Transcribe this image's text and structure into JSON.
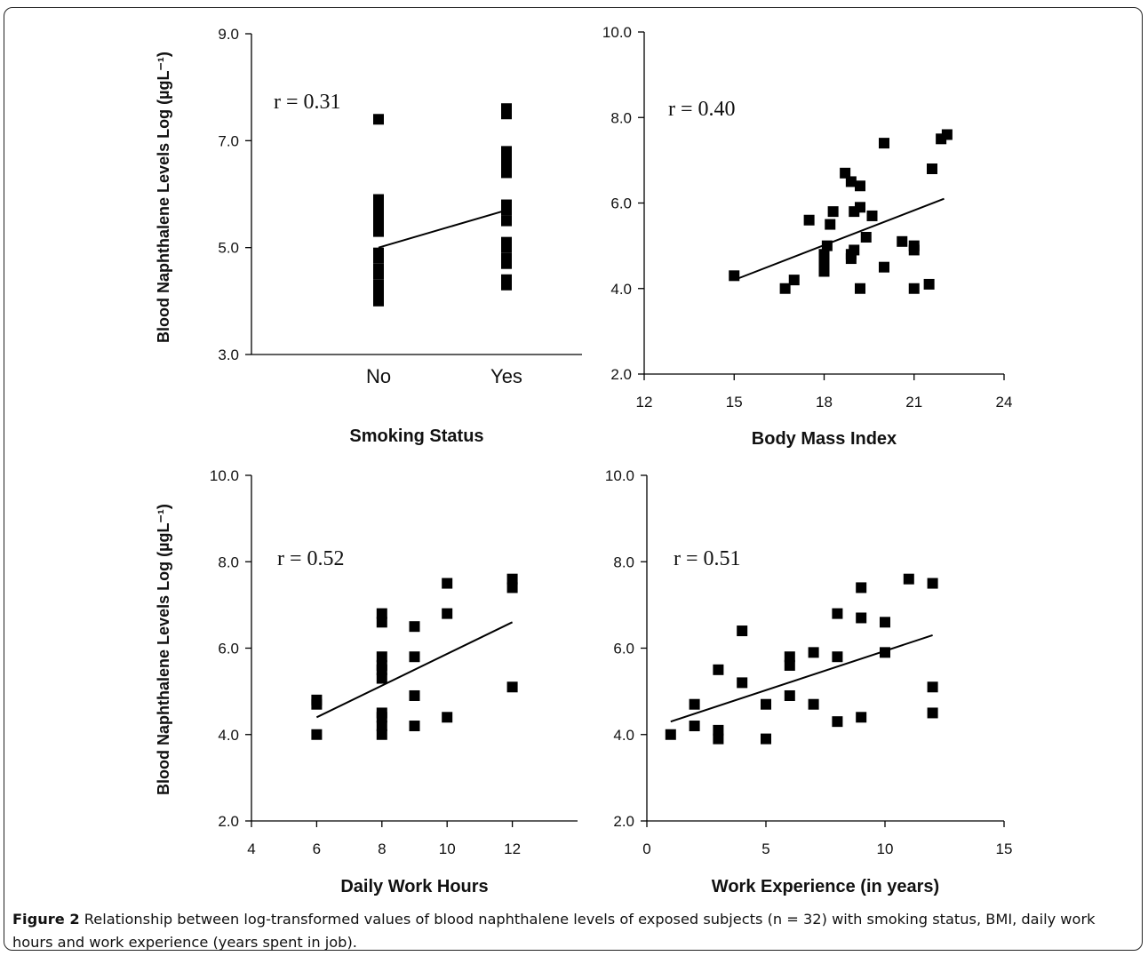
{
  "caption": {
    "label": "Figure 2",
    "text": "Relationship between log-transformed values of blood naphthalene levels of exposed subjects (n = 32) with smoking status, BMI, daily work hours and work experience (years spent in job)."
  },
  "colors": {
    "marker": "#000000",
    "axis": "#000000",
    "text": "#111111"
  },
  "chart_data": [
    {
      "type": "scatter",
      "xlabel": "Smoking Status",
      "ylabel": "Blood Naphthalene Levels Log (µgL⁻¹)",
      "annotation": "r = 0.31",
      "x_categories": [
        "No",
        "Yes"
      ],
      "ylim": [
        3.0,
        9.0
      ],
      "yticks": [
        "3.0",
        "5.0",
        "7.0",
        "9.0"
      ],
      "points": [
        [
          "No",
          4.0
        ],
        [
          "No",
          4.1
        ],
        [
          "No",
          4.2
        ],
        [
          "No",
          4.3
        ],
        [
          "No",
          4.5
        ],
        [
          "No",
          4.6
        ],
        [
          "No",
          4.8
        ],
        [
          "No",
          4.9
        ],
        [
          "No",
          5.3
        ],
        [
          "No",
          5.4
        ],
        [
          "No",
          5.5
        ],
        [
          "No",
          5.6
        ],
        [
          "No",
          5.7
        ],
        [
          "No",
          5.8
        ],
        [
          "No",
          5.9
        ],
        [
          "No",
          7.4
        ],
        [
          "Yes",
          4.3
        ],
        [
          "Yes",
          4.4
        ],
        [
          "Yes",
          4.7
        ],
        [
          "Yes",
          4.8
        ],
        [
          "Yes",
          5.0
        ],
        [
          "Yes",
          5.1
        ],
        [
          "Yes",
          5.5
        ],
        [
          "Yes",
          5.7
        ],
        [
          "Yes",
          5.8
        ],
        [
          "Yes",
          6.4
        ],
        [
          "Yes",
          6.5
        ],
        [
          "Yes",
          6.6
        ],
        [
          "Yes",
          6.7
        ],
        [
          "Yes",
          6.8
        ],
        [
          "Yes",
          7.5
        ],
        [
          "Yes",
          7.6
        ]
      ],
      "trendline": [
        [
          "No",
          5.0
        ],
        [
          "Yes",
          5.7
        ]
      ]
    },
    {
      "type": "scatter",
      "xlabel": "Body Mass Index",
      "ylabel": "",
      "annotation": "r = 0.40",
      "xlim": [
        12,
        24
      ],
      "xticks": [
        "12",
        "15",
        "18",
        "21",
        "24"
      ],
      "ylim": [
        2.0,
        10.0
      ],
      "yticks": [
        "2.0",
        "4.0",
        "6.0",
        "8.0",
        "10.0"
      ],
      "points": [
        [
          15.0,
          4.3
        ],
        [
          16.7,
          4.0
        ],
        [
          17.0,
          4.2
        ],
        [
          17.5,
          5.6
        ],
        [
          18.0,
          4.4
        ],
        [
          18.0,
          4.6
        ],
        [
          18.0,
          4.8
        ],
        [
          18.1,
          5.0
        ],
        [
          18.2,
          5.5
        ],
        [
          18.3,
          5.8
        ],
        [
          18.7,
          6.7
        ],
        [
          18.9,
          4.7
        ],
        [
          18.9,
          4.8
        ],
        [
          18.9,
          6.5
        ],
        [
          19.0,
          4.9
        ],
        [
          19.0,
          5.8
        ],
        [
          19.2,
          4.0
        ],
        [
          19.2,
          5.9
        ],
        [
          19.2,
          6.4
        ],
        [
          19.4,
          5.2
        ],
        [
          19.6,
          5.7
        ],
        [
          20.0,
          4.5
        ],
        [
          20.0,
          7.4
        ],
        [
          20.6,
          5.1
        ],
        [
          21.0,
          4.0
        ],
        [
          21.0,
          4.9
        ],
        [
          21.0,
          5.0
        ],
        [
          21.5,
          4.1
        ],
        [
          21.6,
          6.8
        ],
        [
          21.9,
          7.5
        ],
        [
          22.1,
          7.6
        ]
      ],
      "trendline": [
        [
          15.0,
          4.2
        ],
        [
          22.0,
          6.1
        ]
      ]
    },
    {
      "type": "scatter",
      "xlabel": "Daily Work Hours",
      "ylabel": "Blood Naphthalene Levels Log (µgL⁻¹)",
      "annotation": "r = 0.52",
      "xlim": [
        4,
        14
      ],
      "xticks": [
        "4",
        "6",
        "8",
        "10",
        "12"
      ],
      "ylim": [
        2.0,
        10.0
      ],
      "yticks": [
        "2.0",
        "4.0",
        "6.0",
        "8.0",
        "10.0"
      ],
      "points": [
        [
          6,
          4.0
        ],
        [
          6,
          4.7
        ],
        [
          6,
          4.8
        ],
        [
          8,
          4.0
        ],
        [
          8,
          4.2
        ],
        [
          8,
          4.4
        ],
        [
          8,
          4.5
        ],
        [
          8,
          5.3
        ],
        [
          8,
          5.5
        ],
        [
          8,
          5.6
        ],
        [
          8,
          5.8
        ],
        [
          8,
          6.6
        ],
        [
          8,
          6.8
        ],
        [
          9,
          4.2
        ],
        [
          9,
          4.9
        ],
        [
          9,
          5.8
        ],
        [
          9,
          6.5
        ],
        [
          10,
          4.4
        ],
        [
          10,
          6.8
        ],
        [
          10,
          7.5
        ],
        [
          12,
          5.1
        ],
        [
          12,
          7.4
        ],
        [
          12,
          7.6
        ]
      ],
      "trendline": [
        [
          6,
          4.4
        ],
        [
          12,
          6.6
        ]
      ]
    },
    {
      "type": "scatter",
      "xlabel": "Work Experience (in years)",
      "ylabel": "",
      "annotation": "r = 0.51",
      "xlim": [
        0,
        15
      ],
      "xticks": [
        "0",
        "5",
        "10",
        "15"
      ],
      "ylim": [
        2.0,
        10.0
      ],
      "yticks": [
        "2.0",
        "4.0",
        "6.0",
        "8.0",
        "10.0"
      ],
      "points": [
        [
          1,
          4.0
        ],
        [
          2,
          4.2
        ],
        [
          2,
          4.7
        ],
        [
          3,
          3.9
        ],
        [
          3,
          4.1
        ],
        [
          3,
          5.5
        ],
        [
          4,
          5.2
        ],
        [
          4,
          6.4
        ],
        [
          5,
          3.9
        ],
        [
          5,
          4.7
        ],
        [
          6,
          4.9
        ],
        [
          6,
          5.6
        ],
        [
          6,
          5.8
        ],
        [
          7,
          4.7
        ],
        [
          7,
          5.9
        ],
        [
          8,
          4.3
        ],
        [
          8,
          5.8
        ],
        [
          8,
          6.8
        ],
        [
          9,
          4.4
        ],
        [
          9,
          6.7
        ],
        [
          9,
          7.4
        ],
        [
          10,
          5.9
        ],
        [
          10,
          6.6
        ],
        [
          11,
          7.6
        ],
        [
          12,
          4.5
        ],
        [
          12,
          5.1
        ],
        [
          12,
          7.5
        ]
      ],
      "trendline": [
        [
          1,
          4.3
        ],
        [
          12,
          6.3
        ]
      ]
    }
  ]
}
